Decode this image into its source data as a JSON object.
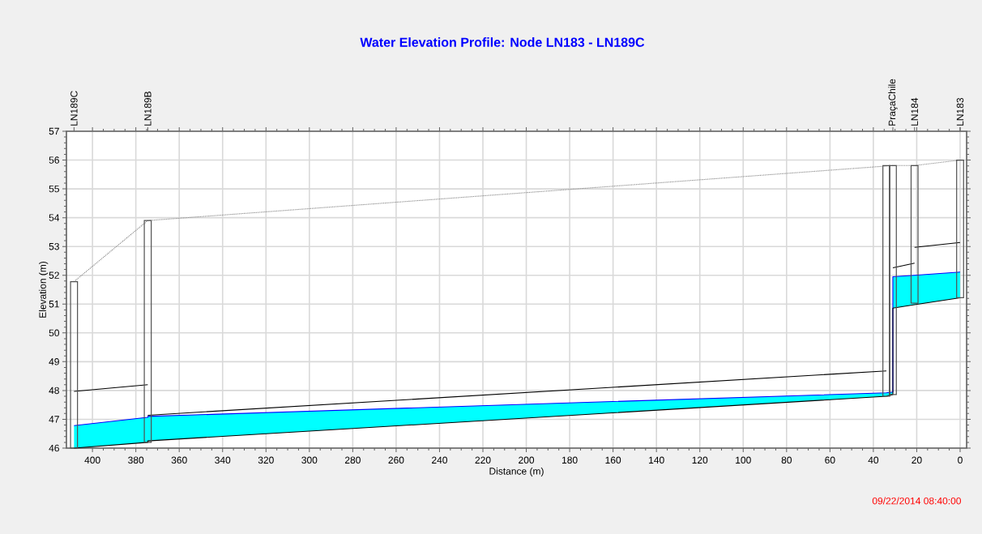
{
  "chart_data": {
    "type": "line",
    "title": "Water Elevation Profile:  Node LN183 - LN189C",
    "xlabel": "Distance (m)",
    "ylabel": "Elevation (m)",
    "annotations": [
      "09/22/2014 08:40:00",
      {
        "text": "LN189C",
        "x": 408.5
      },
      {
        "text": "LN189B",
        "x": 374.5
      },
      {
        "text": "PraçaChile",
        "x": 31
      },
      {
        "text": "LN184",
        "x": 21
      },
      {
        "text": "LN183",
        "x": 0
      }
    ],
    "xlim": [
      412,
      -3
    ],
    "xticks": [
      400,
      380,
      360,
      340,
      320,
      300,
      280,
      260,
      240,
      220,
      200,
      180,
      160,
      140,
      120,
      100,
      80,
      60,
      40,
      20,
      0
    ],
    "ylim": [
      46,
      57
    ],
    "yticks": [
      46,
      47,
      48,
      49,
      50,
      51,
      52,
      53,
      54,
      55,
      56,
      57
    ],
    "grid": true,
    "series": [
      {
        "color": "#0000ff",
        "x": [
          408.5,
          374.5,
          374.5,
          34,
          31,
          31,
          21,
          0
        ],
        "values": [
          46.78,
          47.07,
          47.1,
          47.92,
          47.95,
          51.95,
          52.0,
          52.11
        ],
        "lower": [
          46.0,
          46.2,
          46.25,
          47.8,
          47.86,
          50.86,
          50.98,
          51.22
        ],
        "upper": [
          46.78,
          47.07,
          47.1,
          47.92,
          47.95,
          51.95,
          52.0,
          52.11
        ]
      },
      {
        "color": "#000000",
        "x": [
          408.5,
          374.5,
          374.5,
          34,
          31,
          31,
          21,
          0
        ],
        "values": [
          46.0,
          46.2,
          46.25,
          47.8,
          47.86,
          50.86,
          50.98,
          51.22
        ]
      },
      {
        "color": "#000000",
        "x": [
          408.5,
          374.5
        ],
        "values": [
          47.97,
          48.2
        ]
      },
      {
        "color": "#000000",
        "x": [
          374.5,
          34
        ],
        "values": [
          47.14,
          48.68
        ]
      },
      {
        "color": "#000000",
        "x": [
          31,
          21
        ],
        "values": [
          52.26,
          52.42
        ]
      },
      {
        "color": "#000000",
        "x": [
          21,
          0
        ],
        "values": [
          52.97,
          53.14
        ]
      },
      {
        "color": "#808080",
        "line_style": "dotted",
        "x": [
          408.5,
          374.5,
          31,
          21,
          0
        ],
        "values": [
          51.78,
          53.9,
          55.81,
          55.81,
          56.0
        ]
      },
      {
        "type": "bar",
        "color": "#505050",
        "x": [
          408.5,
          374.5,
          34,
          31,
          21,
          0
        ],
        "base": [
          46.0,
          46.2,
          47.8,
          47.86,
          51.03,
          51.22
        ],
        "values": [
          5.78,
          7.7,
          8.01,
          7.95,
          4.78,
          4.78
        ]
      }
    ]
  }
}
